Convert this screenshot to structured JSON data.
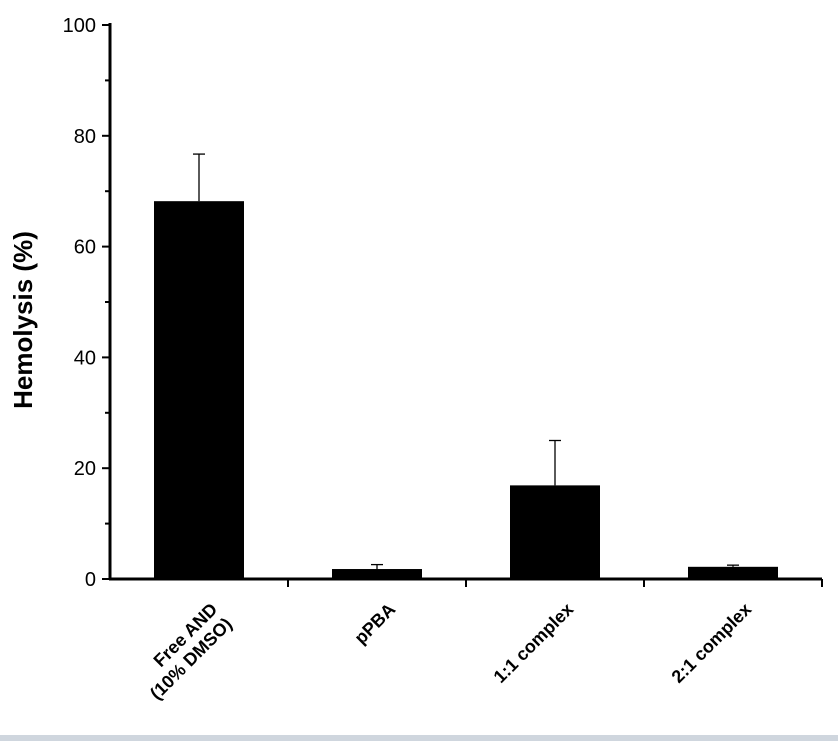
{
  "chart_data": {
    "type": "bar",
    "title": "",
    "xlabel": "",
    "ylabel": "Hemolysis (%)",
    "ylim": [
      0,
      100
    ],
    "yticks": [
      0,
      20,
      40,
      60,
      80,
      100
    ],
    "grid": false,
    "categories": [
      [
        "Free AND",
        "(10% DMSO)"
      ],
      [
        "pPBA"
      ],
      [
        "1:1 complex"
      ],
      [
        "2:1 complex"
      ]
    ],
    "values": [
      68.2,
      1.8,
      16.9,
      2.2
    ],
    "errors": [
      8.5,
      0.8,
      8.1,
      0.3
    ],
    "bar_color": "#000000"
  }
}
